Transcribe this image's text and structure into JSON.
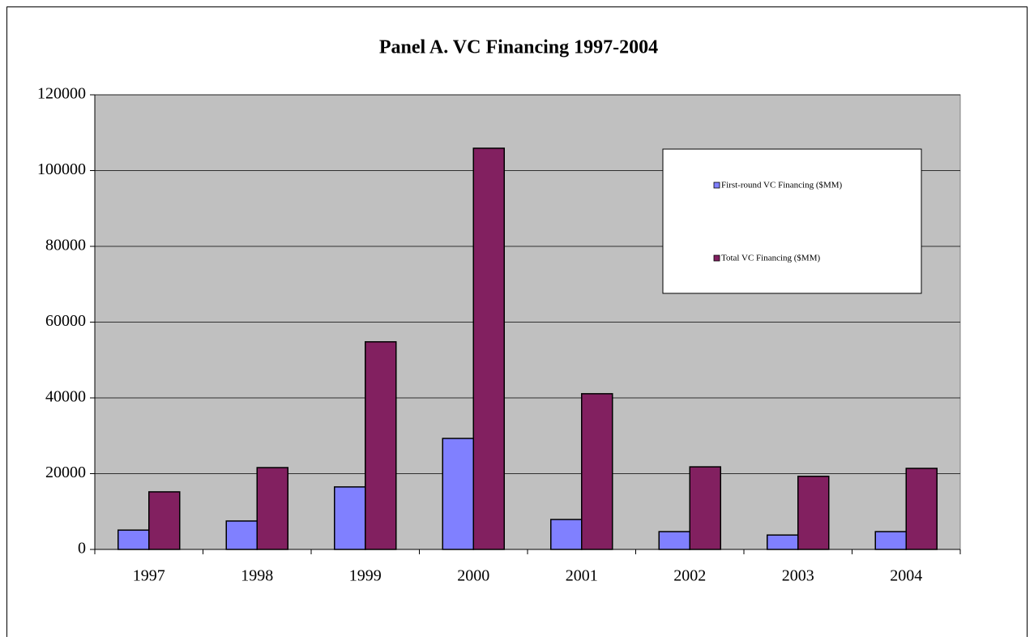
{
  "chart_data": {
    "type": "bar",
    "title": "Panel A. VC Financing 1997-2004",
    "categories": [
      "1997",
      "1998",
      "1999",
      "2000",
      "2001",
      "2002",
      "2003",
      "2004"
    ],
    "series": [
      {
        "name": "First-round VC Financing ($MM)",
        "color": "#8080ff",
        "values": [
          5100,
          7500,
          16500,
          29300,
          7900,
          4700,
          3800,
          4700
        ]
      },
      {
        "name": "Total VC Financing ($MM)",
        "color": "#822060",
        "values": [
          15200,
          21600,
          54800,
          105900,
          41100,
          21800,
          19300,
          21400
        ]
      }
    ],
    "ylim": [
      0,
      120000
    ],
    "yticks": [
      0,
      20000,
      40000,
      60000,
      80000,
      100000,
      120000
    ],
    "grid": true
  }
}
